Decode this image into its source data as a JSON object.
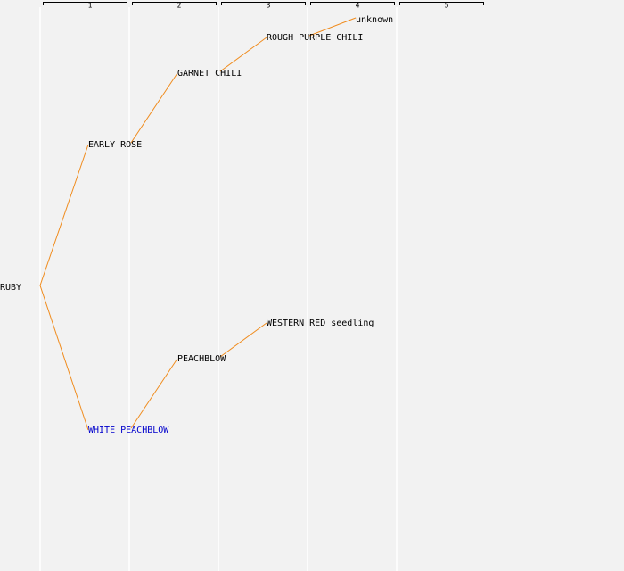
{
  "columns": [
    "1",
    "2",
    "3",
    "4",
    "5"
  ],
  "nodes": [
    {
      "label": "RUBY"
    },
    {
      "label": "EARLY ROSE"
    },
    {
      "label": "WHITE PEACHBLOW"
    },
    {
      "label": "GARNET CHILI"
    },
    {
      "label": "PEACHBLOW"
    },
    {
      "label": "ROUGH PURPLE CHILI"
    },
    {
      "label": "WESTERN RED seedling"
    },
    {
      "label": "unknown"
    }
  ]
}
